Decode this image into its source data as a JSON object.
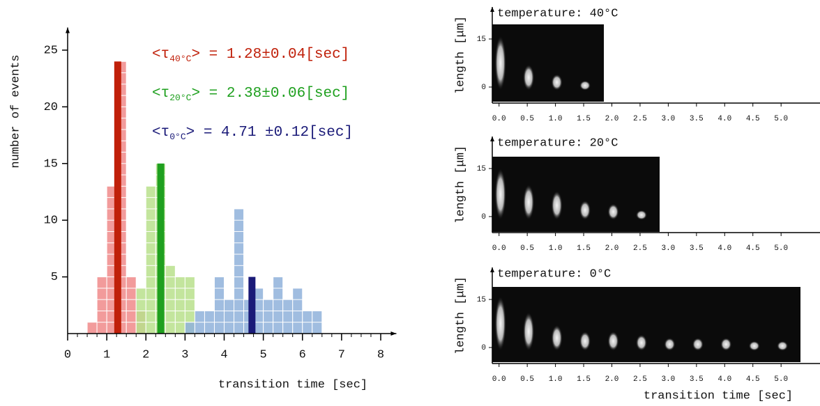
{
  "chart_data": [
    {
      "type": "histogram",
      "xlabel": "transition time [sec]",
      "ylabel": "number of events",
      "xlim": [
        0,
        8.4
      ],
      "ylim": [
        0,
        27
      ],
      "xticks": [
        0,
        1,
        2,
        3,
        4,
        5,
        6,
        7,
        8
      ],
      "yticks": [
        5,
        10,
        15,
        20,
        25
      ],
      "series": [
        {
          "color": "#f08a8a",
          "bins": [
            0.5,
            0.75,
            1.0,
            1.25,
            1.5,
            1.75,
            2.0
          ],
          "values": [
            1,
            5,
            13,
            24,
            5,
            2
          ]
        },
        {
          "color": "#b8e08c",
          "bins": [
            1.75,
            2.0,
            2.25,
            2.5,
            2.75,
            3.0,
            3.25
          ],
          "values": [
            4,
            13,
            15,
            6,
            5,
            5
          ]
        },
        {
          "color": "#8fb2da",
          "bins": [
            3.0,
            3.25,
            3.5,
            3.75,
            4.0,
            4.25,
            4.5,
            4.75,
            5.0,
            5.25,
            5.5,
            5.75,
            6.0,
            6.25,
            6.5
          ],
          "values": [
            1,
            2,
            2,
            5,
            3,
            11,
            3,
            4,
            3,
            5,
            3,
            4,
            2,
            2
          ]
        }
      ],
      "annotations": [
        {
          "prefix": "<τ",
          "sub": "40°C",
          "text": "> = 1.28±0.04[sec]",
          "color": "#c0200a",
          "mean": 1.28,
          "height": 24
        },
        {
          "prefix": "<τ",
          "sub": "20°C",
          "text": "> = 2.38±0.06[sec]",
          "color": "#1fa01f",
          "mean": 2.38,
          "height": 15
        },
        {
          "prefix": "<τ",
          "sub": "0°C",
          "text": "> = 4.71 ±0.12[sec]",
          "color": "#1a1a78",
          "mean": 4.71,
          "height": 5
        }
      ]
    },
    {
      "type": "image",
      "title": "temperature: 40°C",
      "title_color": "#c0200a",
      "ylabel": "length [μm]",
      "xlim": [
        -0.12,
        5.69
      ],
      "ylim": [
        -5,
        25
      ],
      "xticks": [
        {
          "value": 0,
          "label": "0.0"
        },
        {
          "value": 0.5,
          "label": "0.5"
        },
        {
          "value": 1,
          "label": "1.0"
        },
        {
          "value": 1.5,
          "label": "1.5"
        },
        {
          "value": 2,
          "label": "2.0"
        },
        {
          "value": 2.5,
          "label": "2.5"
        },
        {
          "value": 3,
          "label": "3.0"
        },
        {
          "value": 3.5,
          "label": "3.5"
        },
        {
          "value": 4,
          "label": "4.0"
        },
        {
          "value": 4.5,
          "label": "4.5"
        },
        {
          "value": 5,
          "label": "5.0"
        }
      ],
      "yticks": [
        0,
        15
      ]
    },
    {
      "type": "image",
      "title": "temperature: 20°C",
      "title_color": "#1fa01f",
      "ylabel": "length [μm]",
      "xlim": [
        -0.12,
        5.69
      ],
      "ylim": [
        -5,
        25
      ],
      "xticks": [
        {
          "value": 0,
          "label": "0.0"
        },
        {
          "value": 0.5,
          "label": "0.5"
        },
        {
          "value": 1,
          "label": "1.0"
        },
        {
          "value": 1.5,
          "label": "1.5"
        },
        {
          "value": 2,
          "label": "2.0"
        },
        {
          "value": 2.5,
          "label": "2.5"
        },
        {
          "value": 3,
          "label": "3.0"
        },
        {
          "value": 3.5,
          "label": "3.5"
        },
        {
          "value": 4,
          "label": "4.0"
        },
        {
          "value": 4.5,
          "label": "4.5"
        },
        {
          "value": 5,
          "label": "5.0"
        }
      ],
      "yticks": [
        0,
        15
      ]
    },
    {
      "type": "image",
      "title": "temperature: 0°C",
      "title_color": "#1a1a78",
      "ylabel": "length [μm]",
      "xlabel": "transition time [sec]",
      "xlim": [
        -0.12,
        5.69
      ],
      "ylim": [
        -5,
        25
      ],
      "xticks": [
        {
          "value": 0,
          "label": "0.0"
        },
        {
          "value": 0.5,
          "label": "0.5"
        },
        {
          "value": 1,
          "label": "1.0"
        },
        {
          "value": 1.5,
          "label": "1.5"
        },
        {
          "value": 2,
          "label": "2.0"
        },
        {
          "value": 2.5,
          "label": "2.5"
        },
        {
          "value": 3,
          "label": "3.0"
        },
        {
          "value": 3.5,
          "label": "3.5"
        },
        {
          "value": 4,
          "label": "4.0"
        },
        {
          "value": 4.5,
          "label": "4.5"
        },
        {
          "value": 5,
          "label": "5.0"
        }
      ],
      "yticks": [
        0,
        15
      ]
    }
  ]
}
